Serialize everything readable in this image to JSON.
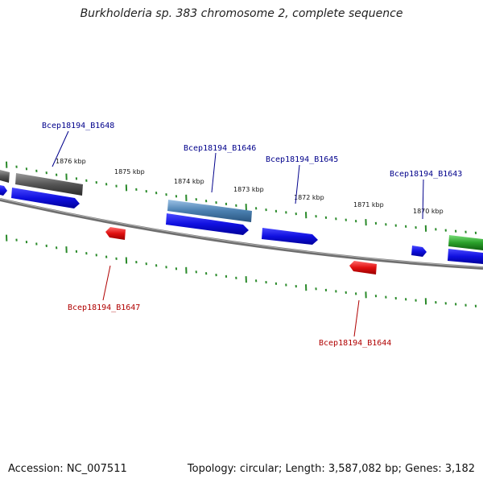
{
  "title": "Burkholderia sp. 383 chromosome 2, complete sequence",
  "accession": "Accession: NC_007511",
  "summary": "Topology: circular; Length: 3,587,082 bp; Genes: 3,182",
  "colors": {
    "plus_strand_gene": "#1010e0",
    "minus_strand_gene": "#e01010",
    "label_plus": "#00008b",
    "label_minus": "#b00000",
    "tick": "#2a8a2a",
    "backbone": "#888888",
    "feature_grey": "#555555",
    "feature_steelblue": "#4a7fb0",
    "feature_green": "#2aa02a"
  },
  "scale_labels": [
    "1876 kbp",
    "1875 kbp",
    "1874 kbp",
    "1873 kbp",
    "1872 kbp",
    "1871 kbp",
    "1870 kbp"
  ],
  "gene_labels": [
    {
      "text": "Bcep18194_B1648",
      "strand": "plus"
    },
    {
      "text": "Bcep18194_B1646",
      "strand": "plus"
    },
    {
      "text": "Bcep18194_B1645",
      "strand": "plus"
    },
    {
      "text": "Bcep18194_B1643",
      "strand": "plus"
    },
    {
      "text": "Bcep18194_B1647",
      "strand": "minus"
    },
    {
      "text": "Bcep18194_B1644",
      "strand": "minus"
    }
  ]
}
